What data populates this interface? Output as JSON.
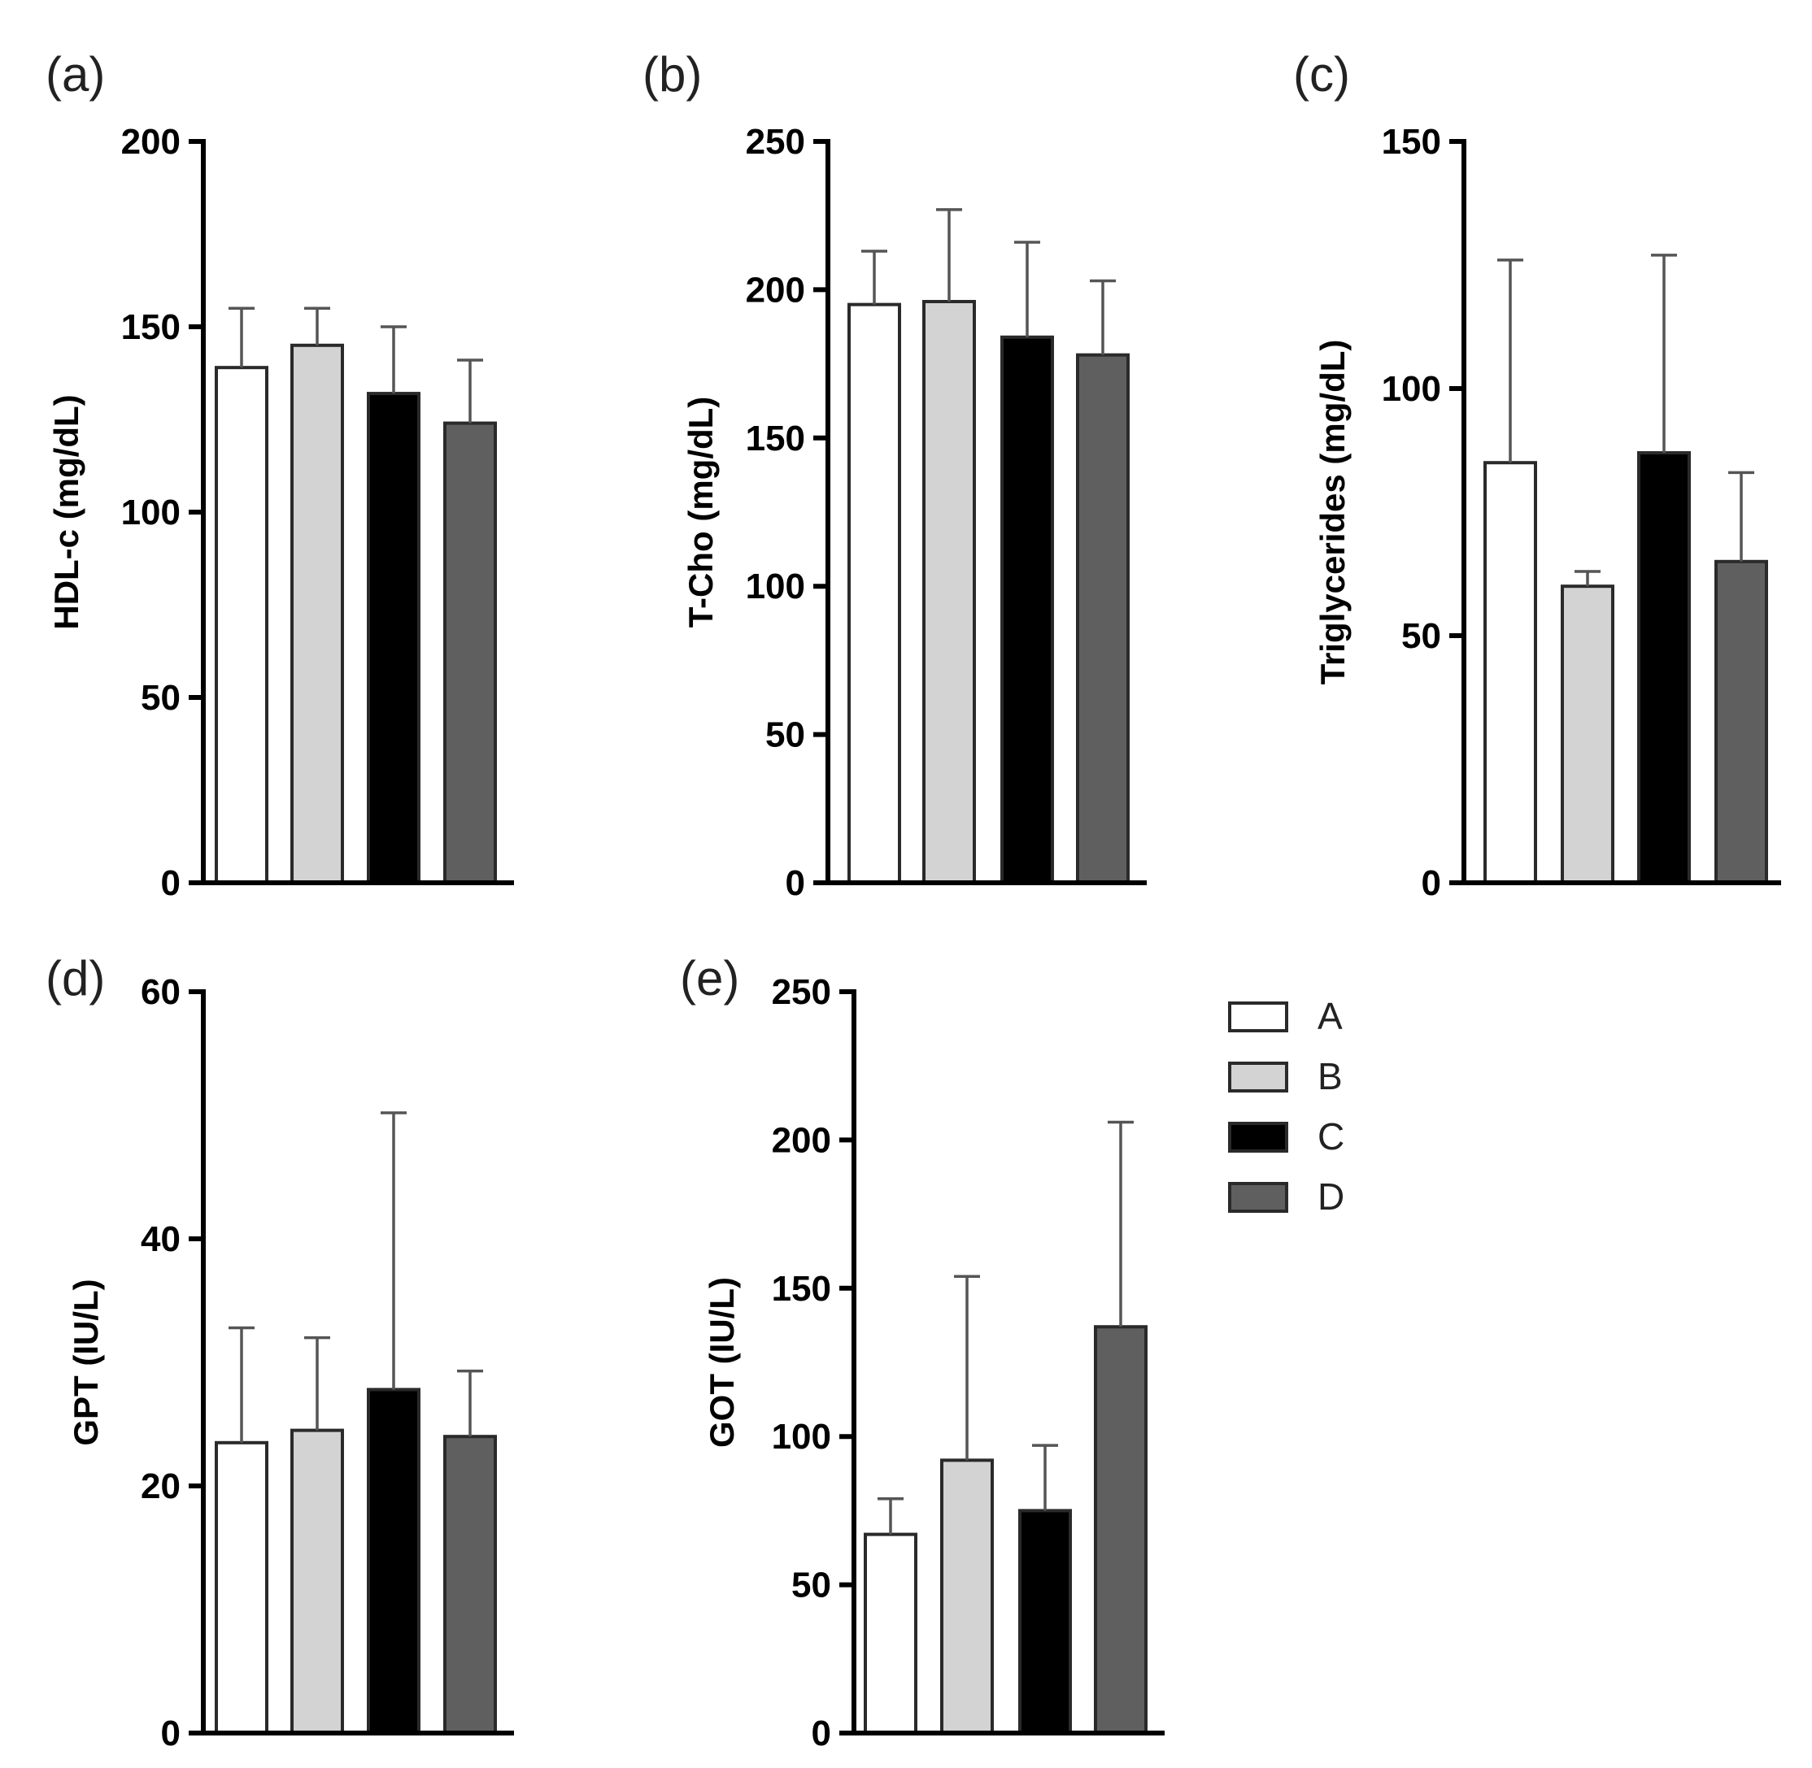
{
  "legend": [
    {
      "label": "A",
      "color": "#ffffff"
    },
    {
      "label": "B",
      "color": "#d3d3d3"
    },
    {
      "label": "C",
      "color": "#000000"
    },
    {
      "label": "D",
      "color": "#5f5f5f"
    }
  ],
  "chart_data": [
    {
      "panel": "(a)",
      "type": "bar",
      "ylabel": "HDL-c (mg/dL)",
      "ylim": [
        0,
        200
      ],
      "yticks": [
        0,
        50,
        100,
        150,
        200
      ],
      "categories": [
        "A",
        "B",
        "C",
        "D"
      ],
      "values": [
        139,
        145,
        132,
        124
      ],
      "errors": [
        16,
        10,
        18,
        17
      ]
    },
    {
      "panel": "(b)",
      "type": "bar",
      "ylabel": "T-Cho (mg/dL)",
      "ylim": [
        0,
        250
      ],
      "yticks": [
        0,
        50,
        100,
        150,
        200,
        250
      ],
      "categories": [
        "A",
        "B",
        "C",
        "D"
      ],
      "values": [
        195,
        196,
        184,
        178
      ],
      "errors": [
        18,
        31,
        32,
        25
      ]
    },
    {
      "panel": "(c)",
      "type": "bar",
      "ylabel": "Triglycerides (mg/dL)",
      "ylim": [
        0,
        150
      ],
      "yticks": [
        0,
        50,
        100,
        150
      ],
      "categories": [
        "A",
        "B",
        "C",
        "D"
      ],
      "values": [
        85,
        60,
        87,
        65
      ],
      "errors": [
        41,
        3,
        40,
        18
      ]
    },
    {
      "panel": "(d)",
      "type": "bar",
      "ylabel": "GPT (IU/L)",
      "ylim": [
        0,
        60
      ],
      "yticks": [
        0,
        20,
        40,
        60
      ],
      "categories": [
        "A",
        "B",
        "C",
        "D"
      ],
      "values": [
        23.5,
        24.5,
        27.8,
        24.0
      ],
      "errors": [
        9.3,
        7.5,
        22.4,
        5.3
      ]
    },
    {
      "panel": "(e)",
      "type": "bar",
      "ylabel": "GOT (IU/L)",
      "ylim": [
        0,
        250
      ],
      "yticks": [
        0,
        50,
        100,
        150,
        200,
        250
      ],
      "categories": [
        "A",
        "B",
        "C",
        "D"
      ],
      "values": [
        67,
        92,
        75,
        137
      ],
      "errors": [
        12,
        62,
        22,
        69
      ]
    }
  ]
}
